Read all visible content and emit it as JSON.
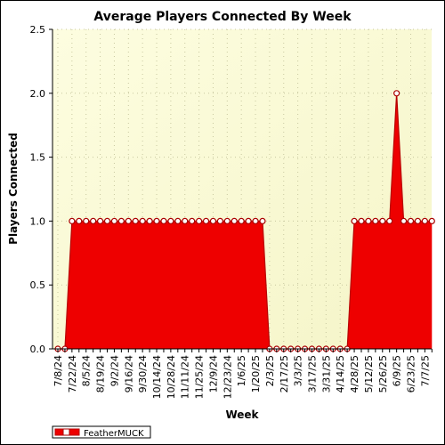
{
  "colors": {
    "plot_background": "#fdfde0",
    "plot_background_edge": "#f5f5c8",
    "series_fill": "#ee0000",
    "series_stroke": "#b80000",
    "marker_fill": "#ffffff",
    "marker_stroke": "#aa0000",
    "grid": "#c8c8a0"
  },
  "chart_data": {
    "type": "area",
    "title": "Average Players Connected By Week",
    "xlabel": "Week",
    "ylabel": "Players Connected",
    "ylim": [
      0,
      2.5
    ],
    "yticks": [
      "0.0",
      "0.5",
      "1.0",
      "1.5",
      "2.0",
      "2.5"
    ],
    "grid": true,
    "legend_position": "bottom-left",
    "x_tick_labels": [
      "7/8/24",
      "7/22/24",
      "8/5/24",
      "8/19/24",
      "9/2/24",
      "9/16/24",
      "9/30/24",
      "10/14/24",
      "10/28/24",
      "11/11/24",
      "11/25/24",
      "12/9/24",
      "12/23/24",
      "1/6/25",
      "1/20/25",
      "2/3/25",
      "2/17/25",
      "3/3/25",
      "3/17/25",
      "3/31/25",
      "4/14/25",
      "4/28/25",
      "5/12/25",
      "5/26/25",
      "6/9/25",
      "6/23/25",
      "7/7/25"
    ],
    "x": [
      "7/8/24",
      "7/15/24",
      "7/22/24",
      "7/29/24",
      "8/5/24",
      "8/12/24",
      "8/19/24",
      "8/26/24",
      "9/2/24",
      "9/9/24",
      "9/16/24",
      "9/23/24",
      "9/30/24",
      "10/7/24",
      "10/14/24",
      "10/21/24",
      "10/28/24",
      "11/4/24",
      "11/11/24",
      "11/18/24",
      "11/25/24",
      "12/2/24",
      "12/9/24",
      "12/16/24",
      "12/23/24",
      "12/30/24",
      "1/6/25",
      "1/13/25",
      "1/20/25",
      "1/27/25",
      "2/3/25",
      "2/10/25",
      "2/17/25",
      "2/24/25",
      "3/3/25",
      "3/10/25",
      "3/17/25",
      "3/24/25",
      "3/31/25",
      "4/7/25",
      "4/14/25",
      "4/21/25",
      "4/28/25",
      "5/5/25",
      "5/12/25",
      "5/19/25",
      "5/26/25",
      "6/2/25",
      "6/9/25",
      "6/16/25",
      "6/23/25",
      "6/30/25",
      "7/7/25",
      "7/14/25"
    ],
    "series": [
      {
        "name": "FeatherMUCK",
        "values": [
          0,
          0,
          1,
          1,
          1,
          1,
          1,
          1,
          1,
          1,
          1,
          1,
          1,
          1,
          1,
          1,
          1,
          1,
          1,
          1,
          1,
          1,
          1,
          1,
          1,
          1,
          1,
          1,
          1,
          1,
          0,
          0,
          0,
          0,
          0,
          0,
          0,
          0,
          0,
          0,
          0,
          0,
          1,
          1,
          1,
          1,
          1,
          1,
          2,
          1,
          1,
          1,
          1,
          1
        ]
      }
    ]
  }
}
